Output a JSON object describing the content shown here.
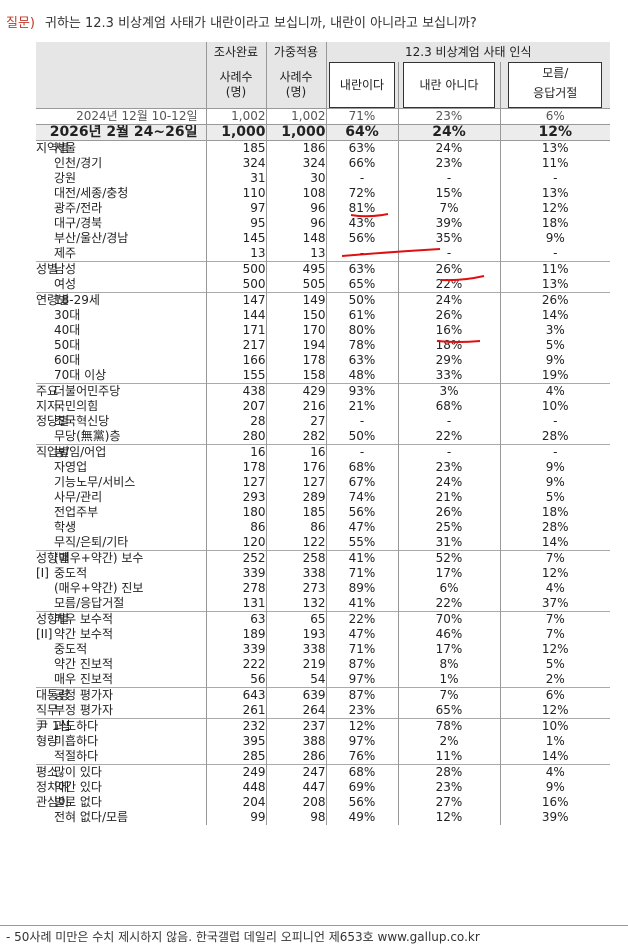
{
  "question": {
    "label": "질문)",
    "text": "귀하는 12.3 비상계엄 사태가 내란이라고 보십니까, 내란이 아니라고 보십니까?"
  },
  "header": {
    "col_done": "조사완료",
    "col_done_sub": "사례수",
    "col_done_unit": "(명)",
    "col_weight": "가중적용",
    "col_weight_sub": "사례수",
    "col_weight_unit": "(명)",
    "group_title": "12.3 비상계엄 사태 인식",
    "opt1": "내란이다",
    "opt2": "내란 아니다",
    "opt3a": "모름/",
    "opt3b": "응답거절"
  },
  "prev_row": {
    "label": "2024년 12월 10-12일",
    "n": "1,002",
    "w": "1,002",
    "a": "71%",
    "b": "23%",
    "c": "6%"
  },
  "main_row": {
    "label": "2026년 2월 24~26일",
    "n": "1,000",
    "w": "1,000",
    "a": "64%",
    "b": "24%",
    "c": "12%"
  },
  "groups": [
    {
      "g": [
        "지역별"
      ],
      "rows": [
        [
          "서울",
          "185",
          "186",
          "63%",
          "24%",
          "13%"
        ],
        [
          "인천/경기",
          "324",
          "324",
          "66%",
          "23%",
          "11%"
        ],
        [
          "강원",
          "31",
          "30",
          "-",
          "-",
          "-"
        ],
        [
          "대전/세종/충청",
          "110",
          "108",
          "72%",
          "15%",
          "13%"
        ],
        [
          "광주/전라",
          "97",
          "96",
          "81%",
          "7%",
          "12%"
        ],
        [
          "대구/경북",
          "95",
          "96",
          "43%",
          "39%",
          "18%"
        ],
        [
          "부산/울산/경남",
          "145",
          "148",
          "56%",
          "35%",
          "9%"
        ],
        [
          "제주",
          "13",
          "13",
          "-",
          "-",
          "-"
        ]
      ]
    },
    {
      "g": [
        "성별"
      ],
      "rows": [
        [
          "남성",
          "500",
          "495",
          "63%",
          "26%",
          "11%"
        ],
        [
          "여성",
          "500",
          "505",
          "65%",
          "22%",
          "13%"
        ]
      ]
    },
    {
      "g": [
        "연령별"
      ],
      "rows": [
        [
          "18-29세",
          "147",
          "149",
          "50%",
          "24%",
          "26%"
        ],
        [
          "30대",
          "144",
          "150",
          "61%",
          "26%",
          "14%"
        ],
        [
          "40대",
          "171",
          "170",
          "80%",
          "16%",
          "3%"
        ],
        [
          "50대",
          "217",
          "194",
          "78%",
          "18%",
          "5%"
        ],
        [
          "60대",
          "166",
          "178",
          "63%",
          "29%",
          "9%"
        ],
        [
          "70대 이상",
          "155",
          "158",
          "48%",
          "33%",
          "19%"
        ]
      ]
    },
    {
      "g": [
        "주요",
        "지지",
        "정당별"
      ],
      "rows": [
        [
          "더불어민주당",
          "438",
          "429",
          "93%",
          "3%",
          "4%"
        ],
        [
          "국민의힘",
          "207",
          "216",
          "21%",
          "68%",
          "10%"
        ],
        [
          "조국혁신당",
          "28",
          "27",
          "-",
          "-",
          "-"
        ],
        [
          "무당(無黨)층",
          "280",
          "282",
          "50%",
          "22%",
          "28%"
        ]
      ]
    },
    {
      "g": [
        "직업별"
      ],
      "rows": [
        [
          "농/임/어업",
          "16",
          "16",
          "-",
          "-",
          "-"
        ],
        [
          "자영업",
          "178",
          "176",
          "68%",
          "23%",
          "9%"
        ],
        [
          "기능노무/서비스",
          "127",
          "127",
          "67%",
          "24%",
          "9%"
        ],
        [
          "사무/관리",
          "293",
          "289",
          "74%",
          "21%",
          "5%"
        ],
        [
          "전업주부",
          "180",
          "185",
          "56%",
          "26%",
          "18%"
        ],
        [
          "학생",
          "86",
          "86",
          "47%",
          "25%",
          "28%"
        ],
        [
          "무직/은퇴/기타",
          "120",
          "122",
          "55%",
          "31%",
          "14%"
        ]
      ]
    },
    {
      "g": [
        "성향별",
        "[I]"
      ],
      "rows": [
        [
          "(매우+약간) 보수",
          "252",
          "258",
          "41%",
          "52%",
          "7%"
        ],
        [
          "중도적",
          "339",
          "338",
          "71%",
          "17%",
          "12%"
        ],
        [
          "(매우+약간) 진보",
          "278",
          "273",
          "89%",
          "6%",
          "4%"
        ],
        [
          "모름/응답거절",
          "131",
          "132",
          "41%",
          "22%",
          "37%"
        ]
      ]
    },
    {
      "g": [
        "성향별",
        "[II]"
      ],
      "rows": [
        [
          "매우 보수적",
          "63",
          "65",
          "22%",
          "70%",
          "7%"
        ],
        [
          "약간 보수적",
          "189",
          "193",
          "47%",
          "46%",
          "7%"
        ],
        [
          "중도적",
          "339",
          "338",
          "71%",
          "17%",
          "12%"
        ],
        [
          "약간 진보적",
          "222",
          "219",
          "87%",
          "8%",
          "5%"
        ],
        [
          "매우 진보적",
          "56",
          "54",
          "97%",
          "1%",
          "2%"
        ]
      ]
    },
    {
      "g": [
        "대통령",
        "직무"
      ],
      "rows": [
        [
          "긍정 평가자",
          "643",
          "639",
          "87%",
          "7%",
          "6%"
        ],
        [
          "부정 평가자",
          "261",
          "264",
          "23%",
          "65%",
          "12%"
        ]
      ]
    },
    {
      "g": [
        "尹 1심",
        "형량"
      ],
      "rows": [
        [
          "과도하다",
          "232",
          "237",
          "12%",
          "78%",
          "10%"
        ],
        [
          "미흡하다",
          "395",
          "388",
          "97%",
          "2%",
          "1%"
        ],
        [
          "적절하다",
          "285",
          "286",
          "76%",
          "11%",
          "14%"
        ]
      ]
    },
    {
      "g": [
        "평소",
        "정치에",
        "관심이"
      ],
      "rows": [
        [
          "많이 있다",
          "249",
          "247",
          "68%",
          "28%",
          "4%"
        ],
        [
          "약간 있다",
          "448",
          "447",
          "69%",
          "23%",
          "9%"
        ],
        [
          "별로 없다",
          "204",
          "208",
          "56%",
          "27%",
          "16%"
        ],
        [
          "전혀 없다/모름",
          "99",
          "98",
          "49%",
          "12%",
          "39%"
        ]
      ]
    }
  ],
  "footnote": "- 50사례 미만은 수치 제시하지 않음. 한국갤럽 데일리 오피니언 제653호 www.gallup.co.kr"
}
